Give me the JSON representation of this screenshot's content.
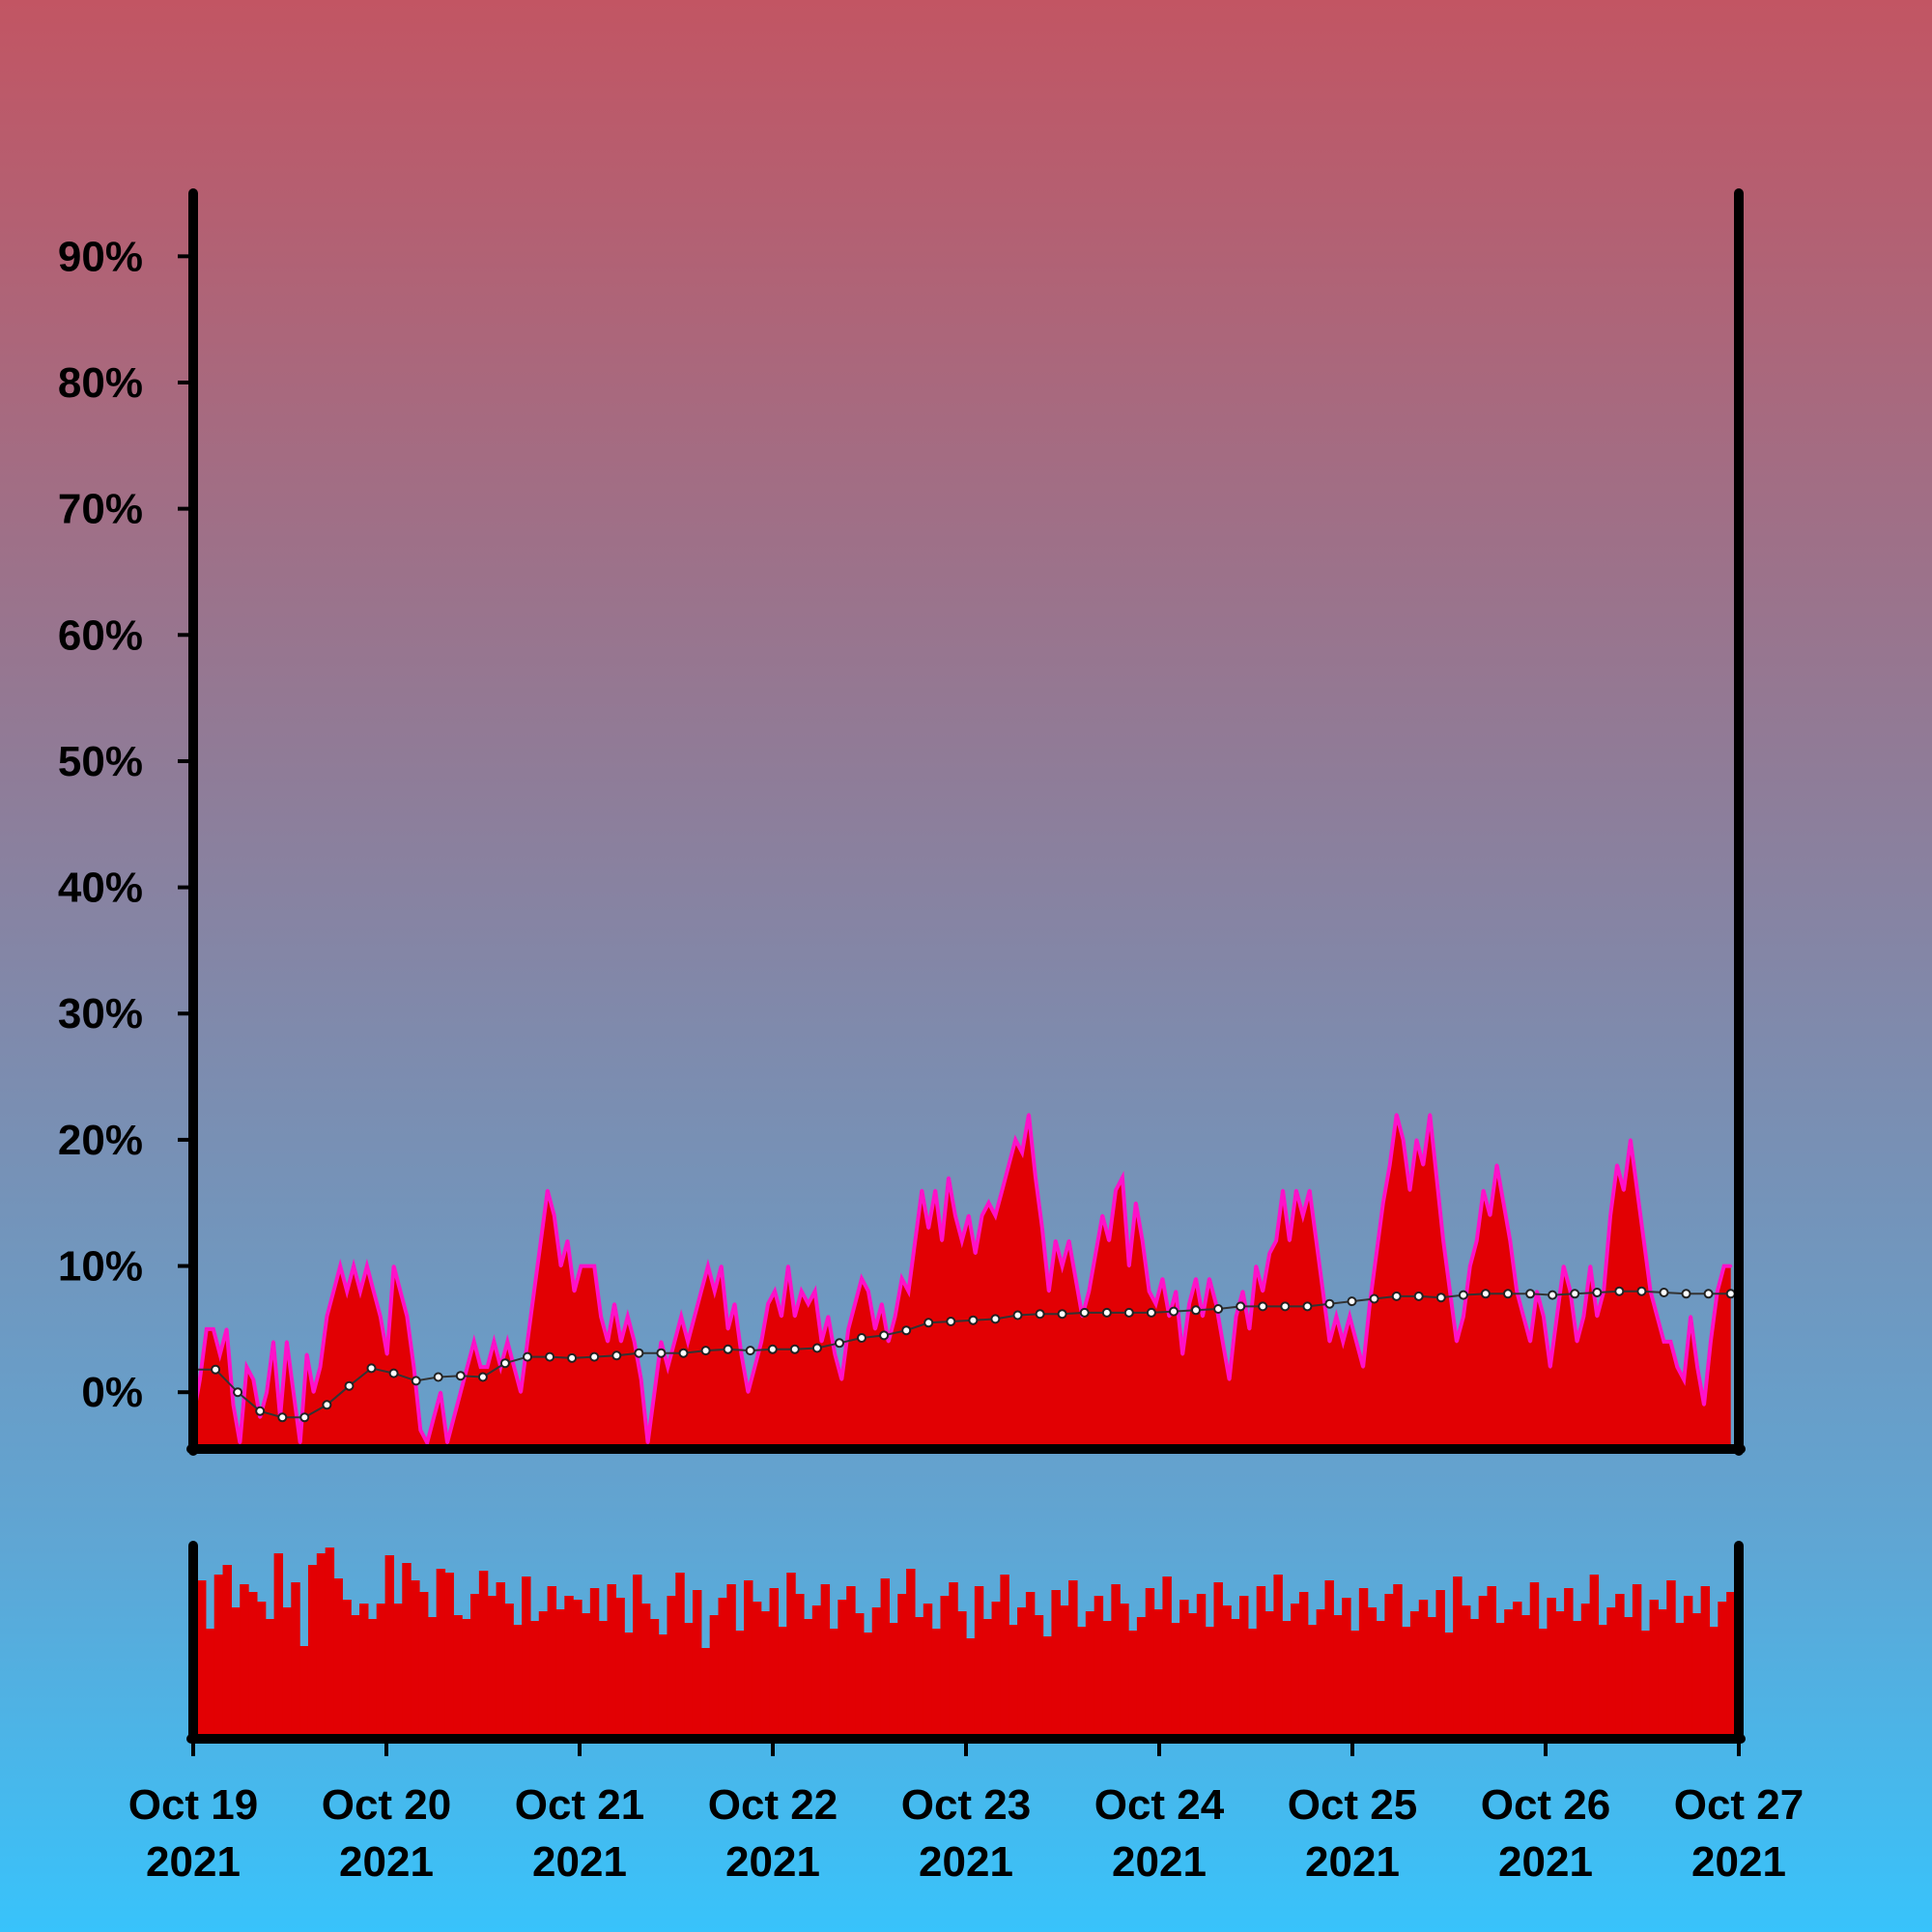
{
  "chart_data": {
    "type": "area",
    "y_ticks": [
      "90%",
      "80%",
      "70%",
      "60%",
      "50%",
      "40%",
      "30%",
      "20%",
      "10%",
      "0%"
    ],
    "y_tick_values": [
      90,
      80,
      70,
      60,
      50,
      40,
      30,
      20,
      10,
      0
    ],
    "ylim": [
      -4.5,
      95
    ],
    "x_ticks": [
      {
        "line1": "Oct 19",
        "line2": "2021"
      },
      {
        "line1": "Oct 20",
        "line2": "2021"
      },
      {
        "line1": "Oct 21",
        "line2": "2021"
      },
      {
        "line1": "Oct 22",
        "line2": "2021"
      },
      {
        "line1": "Oct 23",
        "line2": "2021"
      },
      {
        "line1": "Oct 24",
        "line2": "2021"
      },
      {
        "line1": "Oct 25",
        "line2": "2021"
      },
      {
        "line1": "Oct 26",
        "line2": "2021"
      },
      {
        "line1": "Oct 27",
        "line2": "2021"
      }
    ],
    "xlim": [
      "2021-10-19",
      "2021-10-27"
    ],
    "series": [
      {
        "kind": "area",
        "x_end": "2021-10-26T23:00",
        "values": [
          -2,
          1,
          5,
          5,
          3,
          5,
          -1,
          -4,
          2,
          1,
          -2,
          0,
          4,
          -2,
          4,
          0,
          -4,
          3,
          0,
          2,
          6,
          8,
          10,
          8,
          10,
          8,
          10,
          8,
          6,
          3,
          10,
          8,
          6,
          2,
          -3,
          -4,
          -2,
          0,
          -4,
          -2,
          0,
          2,
          4,
          2,
          2,
          4,
          2,
          4,
          2,
          0,
          4,
          8,
          12,
          16,
          14,
          10,
          12,
          8,
          10,
          10,
          10,
          6,
          4,
          7,
          4,
          6,
          4,
          1,
          -4,
          0,
          4,
          2,
          4,
          6,
          4,
          6,
          8,
          10,
          8,
          10,
          5,
          7,
          3,
          0,
          2,
          4,
          7,
          8,
          6,
          10,
          6,
          8,
          7,
          8,
          4,
          6,
          3,
          1,
          5,
          7,
          9,
          8,
          5,
          7,
          4,
          6,
          9,
          8,
          12,
          16,
          13,
          16,
          12,
          17,
          14,
          12,
          14,
          11,
          14,
          15,
          14,
          16,
          18,
          20,
          19,
          22,
          17,
          13,
          8,
          12,
          10,
          12,
          9,
          6,
          8,
          11,
          14,
          12,
          16,
          17,
          10,
          15,
          12,
          8,
          7,
          9,
          6,
          8,
          3,
          7,
          9,
          6,
          9,
          7,
          4,
          1,
          6,
          8,
          5,
          10,
          8,
          11,
          12,
          16,
          12,
          16,
          14,
          16,
          12,
          8,
          4,
          6,
          4,
          6,
          4,
          2,
          7,
          11,
          15,
          18,
          22,
          20,
          16,
          20,
          18,
          22,
          17,
          12,
          8,
          4,
          6,
          10,
          12,
          16,
          14,
          18,
          15,
          12,
          8,
          6,
          4,
          8,
          6,
          2,
          6,
          10,
          8,
          4,
          6,
          10,
          6,
          8,
          14,
          18,
          16,
          20,
          16,
          12,
          8,
          6,
          4,
          4,
          2,
          1,
          6,
          2,
          -1,
          4,
          8,
          10,
          10
        ]
      },
      {
        "kind": "trend",
        "x_end": "2021-10-26T23:00",
        "values": [
          1.8,
          1.8,
          0,
          -1.5,
          -2,
          -2,
          -1,
          0.5,
          1.9,
          1.5,
          0.9,
          1.2,
          1.3,
          1.2,
          2.3,
          2.8,
          2.8,
          2.7,
          2.8,
          2.9,
          3.1,
          3.1,
          3.1,
          3.3,
          3.4,
          3.3,
          3.4,
          3.4,
          3.5,
          3.9,
          4.3,
          4.5,
          4.9,
          5.5,
          5.6,
          5.7,
          5.8,
          6.1,
          6.2,
          6.2,
          6.3,
          6.3,
          6.3,
          6.3,
          6.4,
          6.5,
          6.6,
          6.8,
          6.8,
          6.8,
          6.8,
          7.0,
          7.2,
          7.4,
          7.6,
          7.6,
          7.5,
          7.7,
          7.8,
          7.8,
          7.8,
          7.7,
          7.8,
          7.9,
          8.0,
          8.0,
          7.9,
          7.8,
          7.8,
          7.8
        ]
      }
    ],
    "colors": {
      "area_fill": "#e20003",
      "area_edge": "#ff11c8",
      "trend_marker": "#ffffff",
      "axis": "#000000"
    },
    "navigator": {
      "values": [
        82,
        57,
        85,
        90,
        68,
        80,
        76,
        71,
        62,
        96,
        68,
        81,
        48,
        90,
        96,
        99,
        83,
        72,
        64,
        70,
        62,
        70,
        95,
        70,
        91,
        82,
        76,
        63,
        88,
        86,
        64,
        62,
        75,
        87,
        74,
        81,
        70,
        59,
        84,
        61,
        66,
        79,
        67,
        74,
        72,
        65,
        78,
        61,
        80,
        73,
        55,
        85,
        70,
        62,
        54,
        74,
        86,
        60,
        77,
        47,
        64,
        73,
        80,
        56,
        82,
        71,
        66,
        78,
        58,
        86,
        75,
        62,
        69,
        80,
        57,
        72,
        79,
        65,
        55,
        68,
        83,
        60,
        75,
        88,
        63,
        70,
        57,
        74,
        81,
        66,
        52,
        79,
        62,
        71,
        85,
        59,
        68,
        76,
        64,
        53,
        77,
        69,
        82,
        58,
        66,
        74,
        61,
        80,
        70,
        56,
        63,
        78,
        67,
        84,
        60,
        72,
        65,
        75,
        58,
        81,
        69,
        62,
        74,
        57,
        79,
        66,
        85,
        61,
        70,
        76,
        59,
        67,
        82,
        64,
        73,
        56,
        78,
        68,
        61,
        75,
        80,
        58,
        66,
        72,
        63,
        77,
        55,
        84,
        69,
        62,
        74,
        79,
        60,
        67,
        71,
        64,
        81,
        57,
        73,
        66,
        78,
        61,
        70,
        85,
        59,
        68,
        75,
        63,
        80,
        56,
        72,
        67,
        82,
        60,
        74,
        65,
        79,
        58,
        71,
        76
      ]
    }
  }
}
